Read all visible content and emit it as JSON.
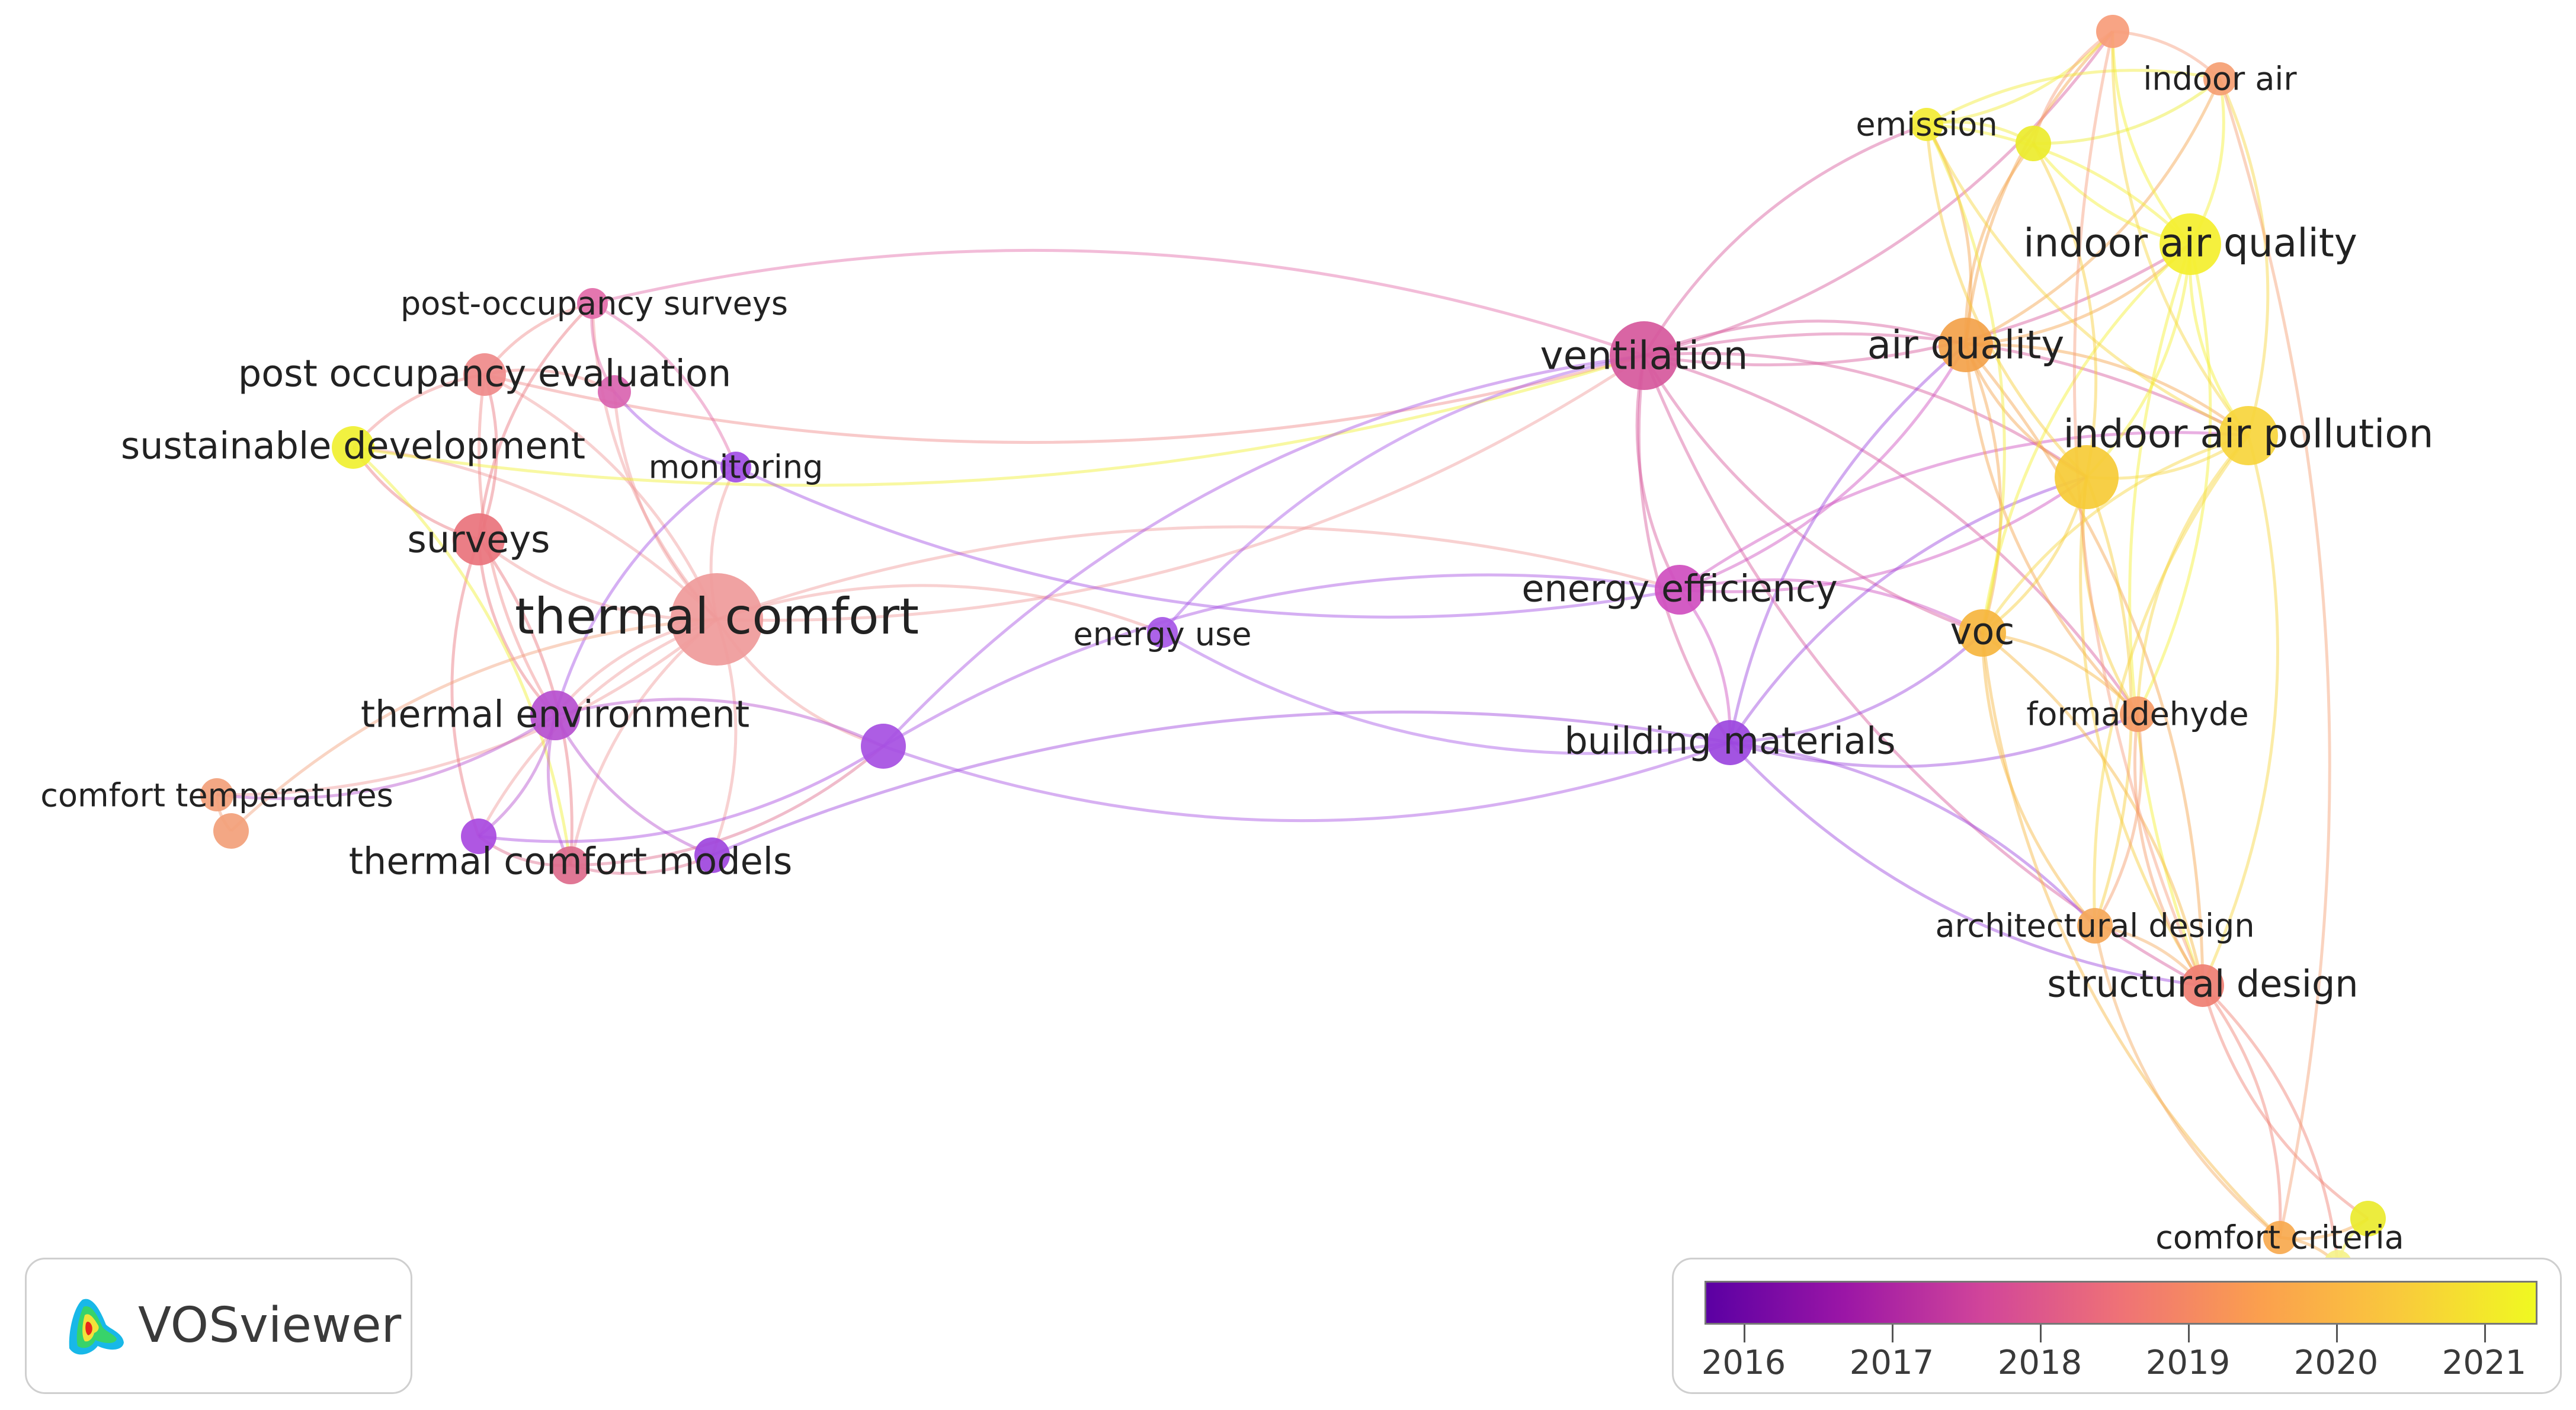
{
  "viewer": {
    "logo_text": "VOSviewer",
    "logo_icon": "vosviewer-density-icon"
  },
  "legend": {
    "gradient_colors": [
      "#5b00a3",
      "#9b16a6",
      "#d1459a",
      "#ef7276",
      "#fb9f4e",
      "#f9c93c",
      "#f0f921"
    ],
    "years": [
      "2016",
      "2017",
      "2018",
      "2019",
      "2020",
      "2021"
    ]
  },
  "network": {
    "nodes": [
      {
        "id": "thermal_comfort",
        "label": "thermal comfort",
        "year": 2018.8,
        "weight": 78,
        "color": "#ef9a9a"
      },
      {
        "id": "surveys",
        "label": "surveys",
        "year": 2018.6,
        "weight": 44,
        "color": "#e9737c"
      },
      {
        "id": "post_occupancy_evaluation",
        "label": "post occupancy evaluation",
        "year": 2018.7,
        "weight": 36,
        "color": "#ef8a8a"
      },
      {
        "id": "post_occupancy_surveys",
        "label": "post-occupancy surveys",
        "year": 2018.0,
        "weight": 26,
        "color": "#e26aa8"
      },
      {
        "id": "sustainable_development",
        "label": "sustainable development",
        "year": 2021.0,
        "weight": 36,
        "color": "#f0f030"
      },
      {
        "id": "monitoring",
        "label": "monitoring",
        "year": 2016.4,
        "weight": 26,
        "color": "#a24de4"
      },
      {
        "id": "thermal_environment",
        "label": "thermal environment",
        "year": 2016.9,
        "weight": 40,
        "color": "#b64fcf"
      },
      {
        "id": "comfort_temperatures",
        "label": "comfort temperatures",
        "year": 2019.6,
        "weight": 28,
        "color": "#f2a07a"
      },
      {
        "id": "thermal_comfort_models",
        "label": "thermal comfort models",
        "year": 2018.3,
        "weight": 32,
        "color": "#dd6b8c"
      },
      {
        "id": "energy_use",
        "label": "energy use",
        "year": 2016.4,
        "weight": 26,
        "color": "#a656e6"
      },
      {
        "id": "ventilation",
        "label": "ventilation",
        "year": 2017.8,
        "weight": 58,
        "color": "#d6589c"
      },
      {
        "id": "energy_efficiency",
        "label": "energy efficiency",
        "year": 2017.5,
        "weight": 42,
        "color": "#cf4ebf"
      },
      {
        "id": "building_materials",
        "label": "building materials",
        "year": 2016.3,
        "weight": 36,
        "color": "#9b45de"
      },
      {
        "id": "air_quality",
        "label": "air quality",
        "year": 2019.9,
        "weight": 46,
        "color": "#f3a24a"
      },
      {
        "id": "indoor_air_quality",
        "label": "indoor air quality",
        "year": 2021.0,
        "weight": 52,
        "color": "#f4ef2e"
      },
      {
        "id": "indoor_air_pollution",
        "label": "indoor air pollution",
        "year": 2020.8,
        "weight": 52,
        "color": "#f7d53c"
      },
      {
        "id": "voc",
        "label": "voc",
        "year": 2020.2,
        "weight": 40,
        "color": "#f6b53e"
      },
      {
        "id": "formaldehyde",
        "label": "formaldehyde",
        "year": 2019.4,
        "weight": 30,
        "color": "#f59a66"
      },
      {
        "id": "architectural_design",
        "label": "architectural design",
        "year": 2019.8,
        "weight": 30,
        "color": "#f5a85a"
      },
      {
        "id": "structural_design",
        "label": "structural design",
        "year": 2019.2,
        "weight": 36,
        "color": "#ef7e72"
      },
      {
        "id": "comfort_criteria",
        "label": "comfort criteria",
        "year": 2020.0,
        "weight": 28,
        "color": "#f7a94e"
      },
      {
        "id": "emission",
        "label": "emission",
        "year": 2021.0,
        "weight": 28,
        "color": "#f2ec34"
      },
      {
        "id": "indoor_air",
        "label": "indoor air",
        "year": 2019.6,
        "weight": 28,
        "color": "#f59e72"
      }
    ],
    "unlabeled_nodes": [
      {
        "id": "n_top_orange",
        "year": 2019.6,
        "color": "#f79c7a"
      },
      {
        "id": "n_yellow_top",
        "year": 2021.0,
        "color": "#ecec2c"
      },
      {
        "id": "n_yellow_big",
        "year": 2020.7,
        "color": "#f6cb36"
      },
      {
        "id": "n_pink_small",
        "year": 2018.0,
        "color": "#d964b0"
      },
      {
        "id": "n_purple_mid",
        "year": 2016.4,
        "color": "#a64fe2"
      },
      {
        "id": "n_orange_low",
        "year": 2019.6,
        "color": "#f2a07a"
      },
      {
        "id": "n_purple_left",
        "year": 2016.4,
        "color": "#a849e0"
      },
      {
        "id": "n_purple_models",
        "year": 2016.3,
        "color": "#9e45dd"
      },
      {
        "id": "n_yellow_bottom",
        "year": 2021.0,
        "color": "#eaea2e"
      },
      {
        "id": "n_yellow_crit",
        "year": 2021.0,
        "color": "#f5f28a"
      }
    ],
    "links": [
      [
        "thermal_comfort",
        "surveys"
      ],
      [
        "thermal_comfort",
        "post_occupancy_evaluation"
      ],
      [
        "thermal_comfort",
        "post_occupancy_surveys"
      ],
      [
        "thermal_comfort",
        "sustainable_development"
      ],
      [
        "thermal_comfort",
        "monitoring"
      ],
      [
        "thermal_comfort",
        "thermal_environment"
      ],
      [
        "thermal_comfort",
        "comfort_temperatures"
      ],
      [
        "thermal_comfort",
        "thermal_comfort_models"
      ],
      [
        "thermal_comfort",
        "energy_use"
      ],
      [
        "thermal_comfort",
        "ventilation"
      ],
      [
        "thermal_comfort",
        "energy_efficiency"
      ],
      [
        "thermal_comfort",
        "n_purple_mid"
      ],
      [
        "thermal_comfort",
        "n_pink_small"
      ],
      [
        "thermal_comfort",
        "n_purple_left"
      ],
      [
        "thermal_comfort",
        "n_purple_models"
      ],
      [
        "surveys",
        "post_occupancy_evaluation"
      ],
      [
        "surveys",
        "sustainable_development"
      ],
      [
        "surveys",
        "thermal_environment"
      ],
      [
        "surveys",
        "post_occupancy_surveys"
      ],
      [
        "surveys",
        "n_purple_left"
      ],
      [
        "surveys",
        "thermal_comfort_models"
      ],
      [
        "post_occupancy_evaluation",
        "sustainable_development"
      ],
      [
        "post_occupancy_evaluation",
        "post_occupancy_surveys"
      ],
      [
        "post_occupancy_evaluation",
        "ventilation"
      ],
      [
        "post_occupancy_evaluation",
        "n_pink_small"
      ],
      [
        "post_occupancy_evaluation",
        "thermal_environment"
      ],
      [
        "post_occupancy_surveys",
        "ventilation"
      ],
      [
        "post_occupancy_surveys",
        "n_pink_small"
      ],
      [
        "post_occupancy_surveys",
        "monitoring"
      ],
      [
        "sustainable_development",
        "ventilation"
      ],
      [
        "sustainable_development",
        "thermal_comfort_models"
      ],
      [
        "monitoring",
        "energy_efficiency"
      ],
      [
        "monitoring",
        "n_pink_small"
      ],
      [
        "monitoring",
        "thermal_environment"
      ],
      [
        "thermal_environment",
        "n_purple_mid"
      ],
      [
        "thermal_environment",
        "thermal_comfort_models"
      ],
      [
        "thermal_environment",
        "n_purple_left"
      ],
      [
        "thermal_environment",
        "n_purple_models"
      ],
      [
        "thermal_environment",
        "comfort_temperatures"
      ],
      [
        "comfort_temperatures",
        "n_orange_low"
      ],
      [
        "n_orange_low",
        "thermal_comfort"
      ],
      [
        "thermal_comfort_models",
        "n_purple_models"
      ],
      [
        "thermal_comfort_models",
        "n_purple_left"
      ],
      [
        "thermal_comfort_models",
        "n_purple_mid"
      ],
      [
        "n_purple_models",
        "building_materials"
      ],
      [
        "n_purple_left",
        "n_purple_mid"
      ],
      [
        "n_purple_mid",
        "energy_efficiency"
      ],
      [
        "n_purple_mid",
        "building_materials"
      ],
      [
        "n_purple_mid",
        "ventilation"
      ],
      [
        "energy_use",
        "building_materials"
      ],
      [
        "energy_use",
        "ventilation"
      ],
      [
        "ventilation",
        "energy_efficiency"
      ],
      [
        "ventilation",
        "air_quality"
      ],
      [
        "ventilation",
        "indoor_air_quality"
      ],
      [
        "ventilation",
        "indoor_air_pollution"
      ],
      [
        "ventilation",
        "voc"
      ],
      [
        "ventilation",
        "emission"
      ],
      [
        "ventilation",
        "n_top_orange"
      ],
      [
        "ventilation",
        "n_yellow_big"
      ],
      [
        "ventilation",
        "building_materials"
      ],
      [
        "ventilation",
        "formaldehyde"
      ],
      [
        "ventilation",
        "structural_design"
      ],
      [
        "energy_efficiency",
        "building_materials"
      ],
      [
        "energy_efficiency",
        "air_quality"
      ],
      [
        "energy_efficiency",
        "indoor_air_pollution"
      ],
      [
        "energy_efficiency",
        "n_yellow_big"
      ],
      [
        "energy_efficiency",
        "voc"
      ],
      [
        "building_materials",
        "voc"
      ],
      [
        "building_materials",
        "n_yellow_big"
      ],
      [
        "building_materials",
        "formaldehyde"
      ],
      [
        "building_materials",
        "architectural_design"
      ],
      [
        "building_materials",
        "structural_design"
      ],
      [
        "building_materials",
        "air_quality"
      ],
      [
        "air_quality",
        "indoor_air_quality"
      ],
      [
        "air_quality",
        "indoor_air_pollution"
      ],
      [
        "air_quality",
        "n_yellow_big"
      ],
      [
        "air_quality",
        "voc"
      ],
      [
        "air_quality",
        "emission"
      ],
      [
        "air_quality",
        "n_yellow_top"
      ],
      [
        "air_quality",
        "indoor_air"
      ],
      [
        "air_quality",
        "n_top_orange"
      ],
      [
        "air_quality",
        "formaldehyde"
      ],
      [
        "air_quality",
        "structural_design"
      ],
      [
        "indoor_air_quality",
        "indoor_air_pollution"
      ],
      [
        "indoor_air_quality",
        "n_yellow_big"
      ],
      [
        "indoor_air_quality",
        "emission"
      ],
      [
        "indoor_air_quality",
        "n_yellow_top"
      ],
      [
        "indoor_air_quality",
        "indoor_air"
      ],
      [
        "indoor_air_quality",
        "n_top_orange"
      ],
      [
        "indoor_air_quality",
        "voc"
      ],
      [
        "indoor_air_quality",
        "formaldehyde"
      ],
      [
        "indoor_air_quality",
        "structural_design"
      ],
      [
        "indoor_air_pollution",
        "n_yellow_big"
      ],
      [
        "indoor_air_pollution",
        "voc"
      ],
      [
        "indoor_air_pollution",
        "emission"
      ],
      [
        "indoor_air_pollution",
        "indoor_air"
      ],
      [
        "indoor_air_pollution",
        "n_top_orange"
      ],
      [
        "indoor_air_pollution",
        "formaldehyde"
      ],
      [
        "indoor_air_pollution",
        "structural_design"
      ],
      [
        "indoor_air_pollution",
        "architectural_design"
      ],
      [
        "n_yellow_big",
        "voc"
      ],
      [
        "n_yellow_big",
        "formaldehyde"
      ],
      [
        "n_yellow_big",
        "architectural_design"
      ],
      [
        "n_yellow_big",
        "structural_design"
      ],
      [
        "n_yellow_big",
        "emission"
      ],
      [
        "n_yellow_big",
        "n_yellow_top"
      ],
      [
        "voc",
        "formaldehyde"
      ],
      [
        "voc",
        "architectural_design"
      ],
      [
        "voc",
        "structural_design"
      ],
      [
        "voc",
        "comfort_criteria"
      ],
      [
        "formaldehyde",
        "architectural_design"
      ],
      [
        "formaldehyde",
        "structural_design"
      ],
      [
        "architectural_design",
        "structural_design"
      ],
      [
        "architectural_design",
        "comfort_criteria"
      ],
      [
        "structural_design",
        "comfort_criteria"
      ],
      [
        "structural_design",
        "n_yellow_bottom"
      ],
      [
        "structural_design",
        "n_yellow_crit"
      ],
      [
        "comfort_criteria",
        "n_yellow_bottom"
      ],
      [
        "comfort_criteria",
        "n_yellow_crit"
      ],
      [
        "n_yellow_bottom",
        "n_yellow_crit"
      ],
      [
        "emission",
        "n_yellow_top"
      ],
      [
        "emission",
        "n_top_orange"
      ],
      [
        "emission",
        "indoor_air"
      ],
      [
        "n_yellow_top",
        "indoor_air"
      ],
      [
        "n_top_orange",
        "indoor_air"
      ],
      [
        "n_top_orange",
        "n_yellow_top"
      ],
      [
        "indoor_air",
        "comfort_criteria"
      ],
      [
        "n_top_orange",
        "structural_design"
      ],
      [
        "emission",
        "voc"
      ]
    ]
  }
}
